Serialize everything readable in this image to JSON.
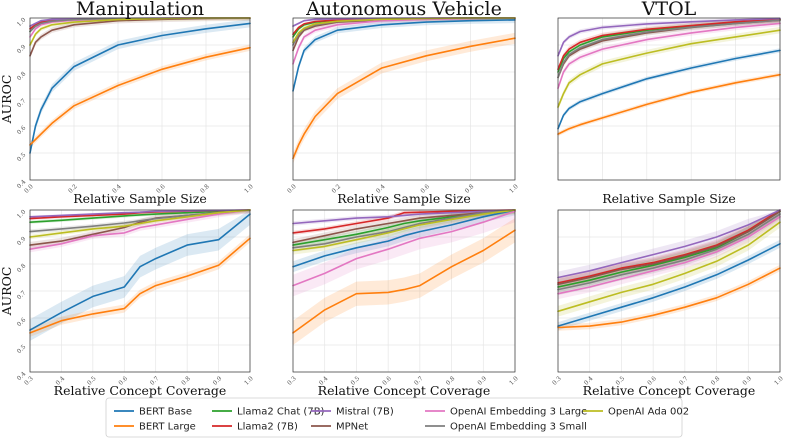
{
  "series_meta": [
    {
      "key": "bert_base",
      "name": "BERT Base",
      "color": "#1f77b4"
    },
    {
      "key": "bert_large",
      "name": "BERT Large",
      "color": "#ff7f0e"
    },
    {
      "key": "llama2_chat",
      "name": "Llama2 Chat (7B)",
      "color": "#2ca02c"
    },
    {
      "key": "llama2",
      "name": "Llama2 (7B)",
      "color": "#d62728"
    },
    {
      "key": "mistral",
      "name": "Mistral (7B)",
      "color": "#9467bd"
    },
    {
      "key": "mpnet",
      "name": "MPNet",
      "color": "#8c564b"
    },
    {
      "key": "openai_large",
      "name": "OpenAI Embedding 3 Large",
      "color": "#e377c2"
    },
    {
      "key": "openai_small",
      "name": "OpenAI Embedding 3 Small",
      "color": "#7f7f7f"
    },
    {
      "key": "ada",
      "name": "OpenAI Ada 002",
      "color": "#bcbd22"
    }
  ],
  "legend_order": [
    "bert_base",
    "bert_large",
    "llama2_chat",
    "llama2",
    "mistral",
    "mpnet",
    "openai_large",
    "openai_small",
    "ada"
  ],
  "chart_data": [
    {
      "type": "line",
      "panel": "sample-manipulation",
      "title": "Manipulation",
      "xlabel": "Relative Sample Size",
      "ylabel": "AUROC",
      "xlim": [
        0,
        1
      ],
      "ylim": [
        0.4,
        1.0
      ],
      "xticks": [
        "0.0",
        "0.2",
        "0.4",
        "0.6",
        "0.8",
        "1.0"
      ],
      "yticks": [
        "0.4",
        "0.5",
        "0.6",
        "0.7",
        "0.8",
        "0.9",
        "1.0"
      ],
      "x": [
        0.0,
        0.025,
        0.05,
        0.1,
        0.2,
        0.4,
        0.6,
        0.8,
        1.0
      ],
      "series": [
        {
          "key": "bert_base",
          "values": [
            0.5,
            0.6,
            0.66,
            0.74,
            0.82,
            0.9,
            0.935,
            0.96,
            0.98
          ],
          "band": 0.015
        },
        {
          "key": "bert_large",
          "values": [
            0.53,
            0.55,
            0.57,
            0.61,
            0.675,
            0.75,
            0.81,
            0.855,
            0.89
          ],
          "band": 0.012
        },
        {
          "key": "llama2_chat",
          "values": [
            0.95,
            0.97,
            0.98,
            0.99,
            0.995,
            0.998,
            0.999,
            1.0,
            1.0
          ],
          "band": 0.005
        },
        {
          "key": "llama2",
          "values": [
            0.96,
            0.975,
            0.985,
            0.99,
            0.995,
            0.998,
            0.999,
            1.0,
            1.0
          ],
          "band": 0.005
        },
        {
          "key": "mistral",
          "values": [
            0.97,
            0.98,
            0.99,
            0.995,
            0.997,
            0.999,
            1.0,
            1.0,
            1.0
          ],
          "band": 0.004
        },
        {
          "key": "mpnet",
          "values": [
            0.86,
            0.91,
            0.93,
            0.955,
            0.975,
            0.99,
            0.995,
            0.998,
            1.0
          ],
          "band": 0.01
        },
        {
          "key": "openai_large",
          "values": [
            0.93,
            0.96,
            0.975,
            0.985,
            0.992,
            0.997,
            0.999,
            1.0,
            1.0
          ],
          "band": 0.006
        },
        {
          "key": "openai_small",
          "values": [
            0.95,
            0.97,
            0.98,
            0.988,
            0.994,
            0.998,
            0.999,
            1.0,
            1.0
          ],
          "band": 0.005
        },
        {
          "key": "ada",
          "values": [
            0.9,
            0.94,
            0.96,
            0.975,
            0.985,
            0.994,
            0.998,
            1.0,
            1.0
          ],
          "band": 0.008
        }
      ]
    },
    {
      "type": "line",
      "panel": "sample-autonomous",
      "title": "Autonomous Vehicle",
      "xlabel": "Relative Sample Size",
      "ylabel": "",
      "xlim": [
        0,
        1
      ],
      "ylim": [
        0.4,
        1.0
      ],
      "xticks": [
        "0.0",
        "0.2",
        "0.4",
        "0.6",
        "0.8",
        "1.0"
      ],
      "yticks": [],
      "x": [
        0.0,
        0.025,
        0.05,
        0.1,
        0.2,
        0.4,
        0.6,
        0.8,
        1.0
      ],
      "series": [
        {
          "key": "bert_base",
          "values": [
            0.73,
            0.82,
            0.88,
            0.92,
            0.955,
            0.975,
            0.985,
            0.99,
            0.993
          ],
          "band": 0.012
        },
        {
          "key": "bert_large",
          "values": [
            0.48,
            0.53,
            0.57,
            0.635,
            0.72,
            0.815,
            0.86,
            0.895,
            0.925
          ],
          "band": 0.02
        },
        {
          "key": "llama2_chat",
          "values": [
            0.93,
            0.96,
            0.975,
            0.985,
            0.992,
            0.997,
            0.999,
            1.0,
            1.0
          ],
          "band": 0.006
        },
        {
          "key": "llama2",
          "values": [
            0.94,
            0.965,
            0.978,
            0.987,
            0.993,
            0.997,
            0.999,
            1.0,
            1.0
          ],
          "band": 0.005
        },
        {
          "key": "mistral",
          "values": [
            0.97,
            0.98,
            0.99,
            0.995,
            0.997,
            0.999,
            1.0,
            1.0,
            1.0
          ],
          "band": 0.004
        },
        {
          "key": "mpnet",
          "values": [
            0.88,
            0.93,
            0.955,
            0.97,
            0.985,
            0.993,
            0.997,
            0.999,
            1.0
          ],
          "band": 0.008
        },
        {
          "key": "openai_large",
          "values": [
            0.83,
            0.89,
            0.93,
            0.955,
            0.975,
            0.99,
            0.995,
            0.998,
            1.0
          ],
          "band": 0.01
        },
        {
          "key": "openai_small",
          "values": [
            0.9,
            0.94,
            0.96,
            0.975,
            0.987,
            0.995,
            0.998,
            1.0,
            1.0
          ],
          "band": 0.007
        },
        {
          "key": "ada",
          "values": [
            0.91,
            0.945,
            0.962,
            0.978,
            0.988,
            0.995,
            0.998,
            1.0,
            1.0
          ],
          "band": 0.007
        }
      ]
    },
    {
      "type": "line",
      "panel": "sample-vtol",
      "title": "VTOL",
      "xlabel": "Relative Sample Size",
      "ylabel": "",
      "xlim": [
        0,
        1
      ],
      "ylim": [
        0.4,
        1.0
      ],
      "xticks": [],
      "yticks": [],
      "x": [
        0.0,
        0.025,
        0.05,
        0.1,
        0.2,
        0.4,
        0.6,
        0.8,
        1.0
      ],
      "series": [
        {
          "key": "bert_base",
          "values": [
            0.59,
            0.64,
            0.665,
            0.69,
            0.72,
            0.775,
            0.815,
            0.85,
            0.88
          ],
          "band": 0.008
        },
        {
          "key": "bert_large",
          "values": [
            0.57,
            0.58,
            0.59,
            0.605,
            0.63,
            0.68,
            0.725,
            0.76,
            0.79
          ],
          "band": 0.008
        },
        {
          "key": "llama2_chat",
          "values": [
            0.8,
            0.85,
            0.875,
            0.9,
            0.93,
            0.955,
            0.97,
            0.985,
            0.995
          ],
          "band": 0.01
        },
        {
          "key": "llama2",
          "values": [
            0.81,
            0.86,
            0.885,
            0.91,
            0.935,
            0.958,
            0.972,
            0.986,
            0.995
          ],
          "band": 0.01
        },
        {
          "key": "mistral",
          "values": [
            0.86,
            0.91,
            0.93,
            0.95,
            0.965,
            0.978,
            0.986,
            0.993,
            0.998
          ],
          "band": 0.008
        },
        {
          "key": "mpnet",
          "values": [
            0.78,
            0.83,
            0.86,
            0.885,
            0.915,
            0.945,
            0.965,
            0.98,
            0.992
          ],
          "band": 0.01
        },
        {
          "key": "openai_large",
          "values": [
            0.74,
            0.8,
            0.83,
            0.855,
            0.885,
            0.92,
            0.945,
            0.965,
            0.98
          ],
          "band": 0.01
        },
        {
          "key": "openai_small",
          "values": [
            0.78,
            0.835,
            0.865,
            0.89,
            0.92,
            0.948,
            0.966,
            0.98,
            0.992
          ],
          "band": 0.01
        },
        {
          "key": "ada",
          "values": [
            0.67,
            0.72,
            0.76,
            0.79,
            0.83,
            0.87,
            0.905,
            0.93,
            0.955
          ],
          "band": 0.012
        }
      ]
    },
    {
      "type": "line",
      "panel": "coverage-manipulation",
      "title": "",
      "xlabel": "Relative Concept Coverage",
      "ylabel": "AUROC",
      "xlim": [
        0.3,
        1.0
      ],
      "ylim": [
        0.4,
        1.0
      ],
      "xticks": [
        "0.3",
        "0.4",
        "0.5",
        "0.6",
        "0.7",
        "0.8",
        "0.9",
        "1.0"
      ],
      "yticks": [
        "0.4",
        "0.5",
        "0.6",
        "0.7",
        "0.8",
        "0.9",
        "1.0"
      ],
      "x": [
        0.3,
        0.4,
        0.5,
        0.6,
        0.65,
        0.7,
        0.8,
        0.9,
        1.0
      ],
      "series": [
        {
          "key": "bert_base",
          "values": [
            0.555,
            0.62,
            0.68,
            0.715,
            0.79,
            0.82,
            0.87,
            0.89,
            0.985
          ],
          "band": 0.04
        },
        {
          "key": "bert_large",
          "values": [
            0.545,
            0.59,
            0.615,
            0.635,
            0.69,
            0.72,
            0.755,
            0.795,
            0.895
          ],
          "band": 0.015
        },
        {
          "key": "llama2_chat",
          "values": [
            0.955,
            0.962,
            0.97,
            0.978,
            0.982,
            0.985,
            0.99,
            0.995,
            1.0
          ],
          "band": 0.006
        },
        {
          "key": "llama2",
          "values": [
            0.968,
            0.975,
            0.98,
            0.985,
            0.99,
            0.993,
            0.996,
            0.998,
            1.0
          ],
          "band": 0.005
        },
        {
          "key": "mistral",
          "values": [
            0.975,
            0.98,
            0.985,
            0.99,
            0.992,
            0.995,
            0.997,
            0.999,
            1.0
          ],
          "band": 0.004
        },
        {
          "key": "mpnet",
          "values": [
            0.87,
            0.885,
            0.91,
            0.935,
            0.955,
            0.97,
            0.98,
            0.99,
            1.0
          ],
          "band": 0.012
        },
        {
          "key": "openai_large",
          "values": [
            0.855,
            0.875,
            0.905,
            0.915,
            0.935,
            0.945,
            0.965,
            0.985,
            1.0
          ],
          "band": 0.012
        },
        {
          "key": "openai_small",
          "values": [
            0.92,
            0.93,
            0.94,
            0.952,
            0.96,
            0.968,
            0.98,
            0.99,
            1.0
          ],
          "band": 0.008
        },
        {
          "key": "ada",
          "values": [
            0.9,
            0.915,
            0.93,
            0.94,
            0.95,
            0.96,
            0.975,
            0.99,
            1.0
          ],
          "band": 0.008
        }
      ]
    },
    {
      "type": "line",
      "panel": "coverage-autonomous",
      "title": "",
      "xlabel": "Relative Concept Coverage",
      "ylabel": "",
      "xlim": [
        0.3,
        1.0
      ],
      "ylim": [
        0.4,
        1.0
      ],
      "xticks": [
        "0.3",
        "0.4",
        "0.5",
        "0.6",
        "0.7",
        "0.8",
        "0.9",
        "1.0"
      ],
      "yticks": [],
      "x": [
        0.3,
        0.4,
        0.5,
        0.6,
        0.65,
        0.7,
        0.8,
        0.9,
        1.0
      ],
      "series": [
        {
          "key": "bert_base",
          "values": [
            0.79,
            0.83,
            0.86,
            0.885,
            0.905,
            0.92,
            0.945,
            0.975,
            1.0
          ],
          "band": 0.02
        },
        {
          "key": "bert_large",
          "values": [
            0.545,
            0.63,
            0.69,
            0.695,
            0.705,
            0.72,
            0.79,
            0.85,
            0.925
          ],
          "band": 0.045
        },
        {
          "key": "llama2_chat",
          "values": [
            0.87,
            0.89,
            0.91,
            0.935,
            0.95,
            0.96,
            0.975,
            0.99,
            1.0
          ],
          "band": 0.012
        },
        {
          "key": "llama2",
          "values": [
            0.915,
            0.93,
            0.95,
            0.97,
            0.99,
            0.992,
            0.995,
            0.998,
            1.0
          ],
          "band": 0.008
        },
        {
          "key": "mistral",
          "values": [
            0.95,
            0.96,
            0.97,
            0.975,
            0.98,
            0.985,
            0.99,
            0.995,
            1.0
          ],
          "band": 0.008
        },
        {
          "key": "mpnet",
          "values": [
            0.88,
            0.905,
            0.93,
            0.95,
            0.96,
            0.97,
            0.98,
            0.99,
            1.0
          ],
          "band": 0.012
        },
        {
          "key": "openai_large",
          "values": [
            0.72,
            0.765,
            0.82,
            0.855,
            0.875,
            0.895,
            0.92,
            0.955,
            0.995
          ],
          "band": 0.04
        },
        {
          "key": "openai_small",
          "values": [
            0.86,
            0.875,
            0.9,
            0.92,
            0.935,
            0.95,
            0.97,
            0.99,
            1.0
          ],
          "band": 0.015
        },
        {
          "key": "ada",
          "values": [
            0.85,
            0.865,
            0.89,
            0.915,
            0.93,
            0.945,
            0.965,
            0.985,
            1.0
          ],
          "band": 0.015
        }
      ]
    },
    {
      "type": "line",
      "panel": "coverage-vtol",
      "title": "",
      "xlabel": "Relative Concept Coverage",
      "ylabel": "",
      "xlim": [
        0.3,
        1.0
      ],
      "ylim": [
        0.4,
        1.0
      ],
      "xticks": [
        "0.3",
        "0.4",
        "0.5",
        "0.6",
        "0.7",
        "0.8",
        "0.9",
        "1.0"
      ],
      "yticks": [],
      "x": [
        0.3,
        0.4,
        0.5,
        0.6,
        0.65,
        0.7,
        0.8,
        0.9,
        1.0
      ],
      "series": [
        {
          "key": "bert_base",
          "values": [
            0.57,
            0.605,
            0.64,
            0.675,
            0.695,
            0.715,
            0.76,
            0.815,
            0.875
          ],
          "band": 0.015
        },
        {
          "key": "bert_large",
          "values": [
            0.565,
            0.57,
            0.585,
            0.61,
            0.625,
            0.64,
            0.675,
            0.725,
            0.785
          ],
          "band": 0.012
        },
        {
          "key": "llama2_chat",
          "values": [
            0.715,
            0.74,
            0.77,
            0.795,
            0.81,
            0.825,
            0.86,
            0.92,
            0.995
          ],
          "band": 0.02
        },
        {
          "key": "llama2",
          "values": [
            0.73,
            0.755,
            0.785,
            0.805,
            0.82,
            0.835,
            0.87,
            0.925,
            1.0
          ],
          "band": 0.02
        },
        {
          "key": "mistral",
          "values": [
            0.75,
            0.775,
            0.805,
            0.835,
            0.85,
            0.865,
            0.9,
            0.945,
            1.0
          ],
          "band": 0.022
        },
        {
          "key": "mpnet",
          "values": [
            0.725,
            0.75,
            0.78,
            0.8,
            0.815,
            0.83,
            0.865,
            0.92,
            0.995
          ],
          "band": 0.02
        },
        {
          "key": "openai_large",
          "values": [
            0.69,
            0.715,
            0.745,
            0.775,
            0.79,
            0.805,
            0.845,
            0.9,
            0.975
          ],
          "band": 0.02
        },
        {
          "key": "openai_small",
          "values": [
            0.705,
            0.73,
            0.76,
            0.785,
            0.8,
            0.815,
            0.855,
            0.91,
            0.985
          ],
          "band": 0.02
        },
        {
          "key": "ada",
          "values": [
            0.625,
            0.66,
            0.695,
            0.725,
            0.745,
            0.765,
            0.81,
            0.87,
            0.955
          ],
          "band": 0.02
        }
      ]
    }
  ]
}
